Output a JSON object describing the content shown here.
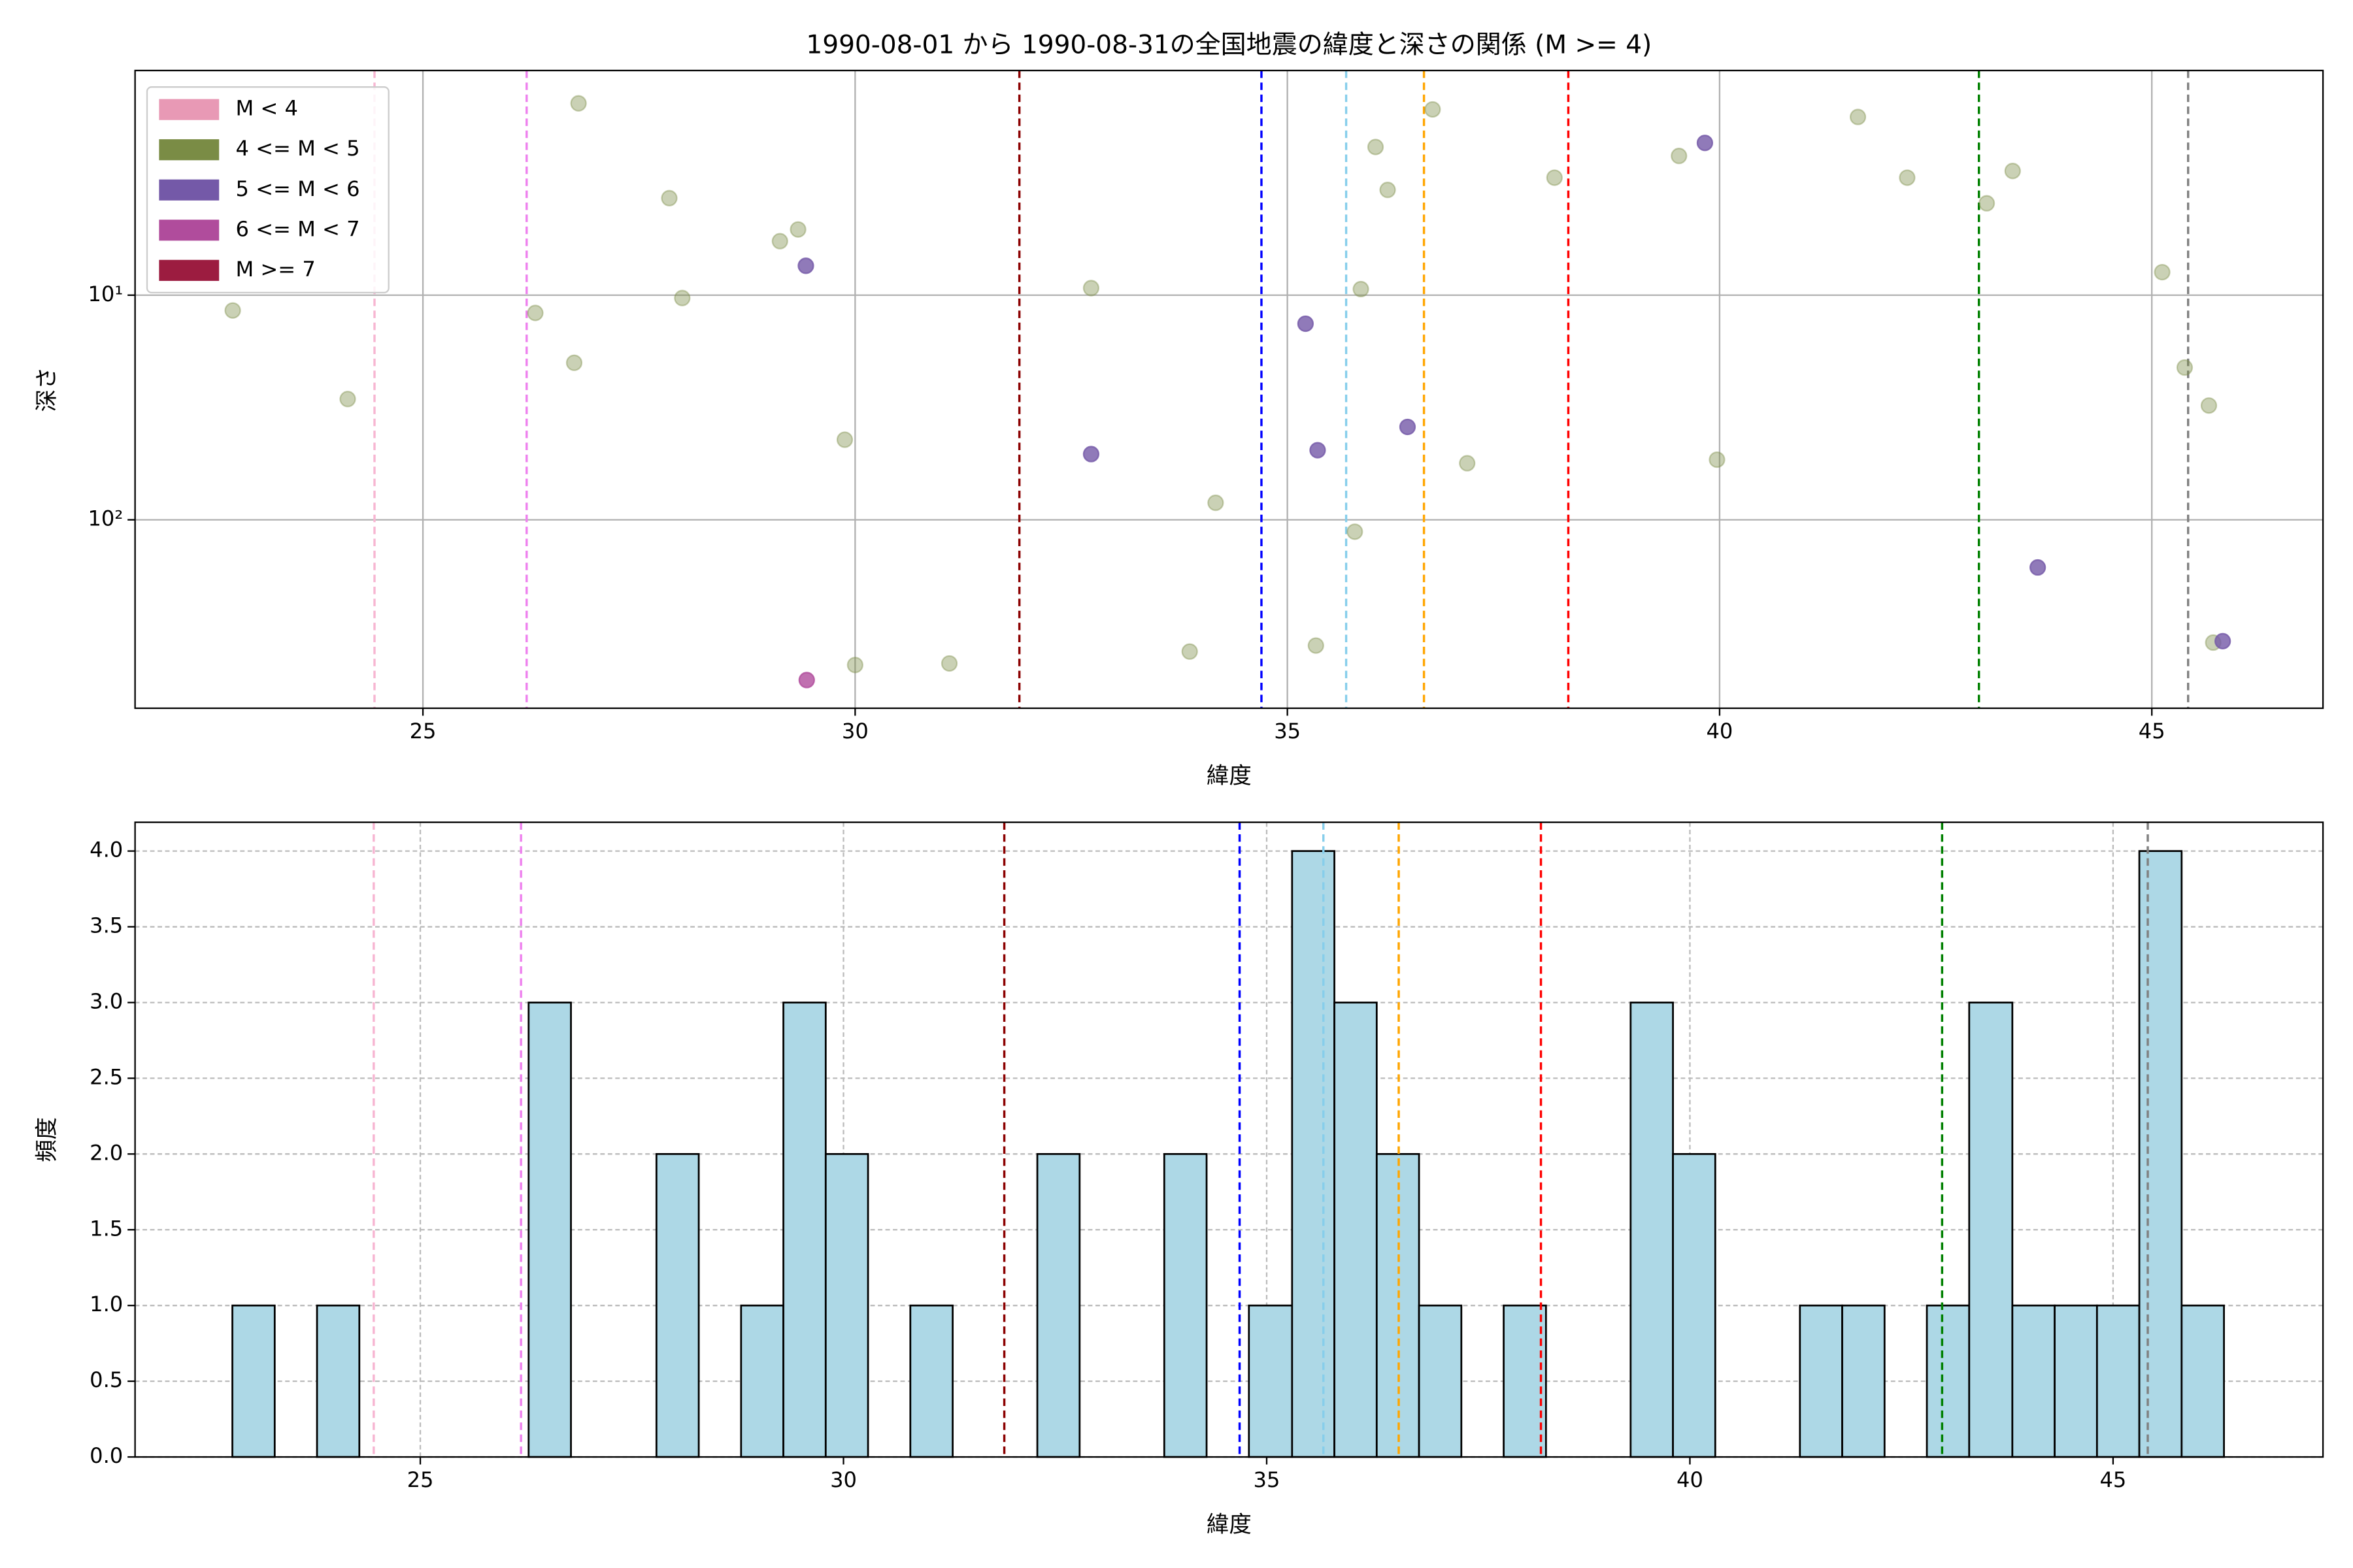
{
  "chart_data": [
    {
      "type": "scatter",
      "title": "1990-08-01 から 1990-08-31の全国地震の緯度と深さの関係 (M >= 4)",
      "x_label": "緯度",
      "y_label": "深さ",
      "xlim": [
        21.67,
        46.98
      ],
      "xticks": [
        25,
        30,
        35,
        40,
        45
      ],
      "ylim": [
        1,
        690
      ],
      "yscale": "log",
      "invert_y": true,
      "yticks": [
        {
          "value": 10,
          "label": "10¹"
        },
        {
          "value": 100,
          "label": "10²"
        }
      ],
      "grid": true,
      "legend": "upper left",
      "series": [
        {
          "name": "M < 4",
          "color": "#e899b5",
          "alpha": 0.8,
          "x": [],
          "values": []
        },
        {
          "name": "4 <= M < 5",
          "color": "#7a8c45",
          "alpha": 0.4,
          "x": [
            22.8,
            24.13,
            26.3,
            26.75,
            26.8,
            27.85,
            28.0,
            29.13,
            29.34,
            29.88,
            30.0,
            31.09,
            32.73,
            33.87,
            34.17,
            35.33,
            35.78,
            35.85,
            36.02,
            36.16,
            36.68,
            37.08,
            38.09,
            39.53,
            39.97,
            41.6,
            42.17,
            43.09,
            43.39,
            45.12,
            45.38,
            45.66,
            45.71
          ],
          "values": [
            11.7,
            29,
            12,
            20,
            1.4,
            3.7,
            10.3,
            5.75,
            5.1,
            44,
            443,
            436,
            9.3,
            386,
            84,
            363,
            113,
            9.4,
            2.19,
            3.4,
            1.49,
            56,
            3.0,
            2.4,
            54,
            1.61,
            3.0,
            3.9,
            2.8,
            7.9,
            21,
            31,
            352
          ]
        },
        {
          "name": "5 <= M < 6",
          "color": "#7459a8",
          "alpha": 0.8,
          "x": [
            29.43,
            32.73,
            35.21,
            35.35,
            36.39,
            39.83,
            43.68,
            45.82
          ],
          "values": [
            7.4,
            51,
            13.4,
            49,
            38.6,
            2.1,
            163,
            347
          ]
        },
        {
          "name": "6 <= M < 7",
          "color": "#b04c9c",
          "alpha": 0.8,
          "x": [
            29.44
          ],
          "values": [
            517
          ]
        },
        {
          "name": "M >= 7",
          "color": "#9c1c40",
          "alpha": 0.8,
          "x": [],
          "values": []
        }
      ],
      "reference_lines": [
        {
          "x": 24.44,
          "color": "#f7b6d2"
        },
        {
          "x": 26.2,
          "color": "#ee82ee"
        },
        {
          "x": 31.9,
          "color": "#8b0000"
        },
        {
          "x": 34.7,
          "color": "#0000ff"
        },
        {
          "x": 35.68,
          "color": "#87ceeb"
        },
        {
          "x": 36.58,
          "color": "#ffa500"
        },
        {
          "x": 38.25,
          "color": "#ff0000"
        },
        {
          "x": 43.0,
          "color": "#008000"
        },
        {
          "x": 45.42,
          "color": "#808080"
        }
      ]
    },
    {
      "type": "histogram",
      "x_label": "緯度",
      "y_label": "頻度",
      "xlim": [
        21.63,
        47.48
      ],
      "xticks": [
        25,
        30,
        35,
        40,
        45
      ],
      "ylim": [
        0,
        4.19
      ],
      "yticks": [
        {
          "value": 0,
          "label": "0.0"
        },
        0.5,
        {
          "value": 1,
          "label": "1.0"
        },
        1.5,
        {
          "value": 2,
          "label": "2.0"
        },
        2.5,
        {
          "value": 3,
          "label": "3.0"
        },
        3.5,
        {
          "value": 4,
          "label": "4.0"
        }
      ],
      "grid": true,
      "color": "#add8e6",
      "edgecolor": "#000000",
      "bins": [
        22.78,
        23.28,
        23.78,
        24.28,
        24.78,
        25.28,
        25.78,
        26.28,
        26.78,
        27.29,
        27.79,
        28.29,
        28.79,
        29.29,
        29.79,
        30.29,
        30.79,
        31.29,
        31.79,
        32.29,
        32.79,
        33.29,
        33.79,
        34.29,
        34.79,
        35.3,
        35.8,
        36.3,
        36.8,
        37.3,
        37.8,
        38.3,
        38.8,
        39.3,
        39.8,
        40.3,
        40.8,
        41.3,
        41.8,
        42.3,
        42.8,
        43.3,
        43.81,
        44.31,
        44.81,
        45.31,
        45.81,
        46.31
      ],
      "values": [
        1,
        0,
        1,
        0,
        0,
        0,
        0,
        3,
        0,
        0,
        2,
        0,
        1,
        3,
        2,
        0,
        1,
        0,
        0,
        2,
        0,
        0,
        2,
        0,
        1,
        4,
        3,
        2,
        1,
        0,
        1,
        0,
        0,
        3,
        2,
        0,
        0,
        1,
        1,
        0,
        1,
        3,
        1,
        1,
        1,
        4,
        1
      ],
      "reference_lines": [
        {
          "x": 24.45,
          "color": "#f7b6d2"
        },
        {
          "x": 26.19,
          "color": "#ee82ee"
        },
        {
          "x": 31.9,
          "color": "#8b0000"
        },
        {
          "x": 34.68,
          "color": "#0000ff"
        },
        {
          "x": 35.67,
          "color": "#87ceeb"
        },
        {
          "x": 36.56,
          "color": "#ffa500"
        },
        {
          "x": 38.24,
          "color": "#ff0000"
        },
        {
          "x": 42.98,
          "color": "#008000"
        },
        {
          "x": 45.41,
          "color": "#808080"
        }
      ]
    }
  ]
}
